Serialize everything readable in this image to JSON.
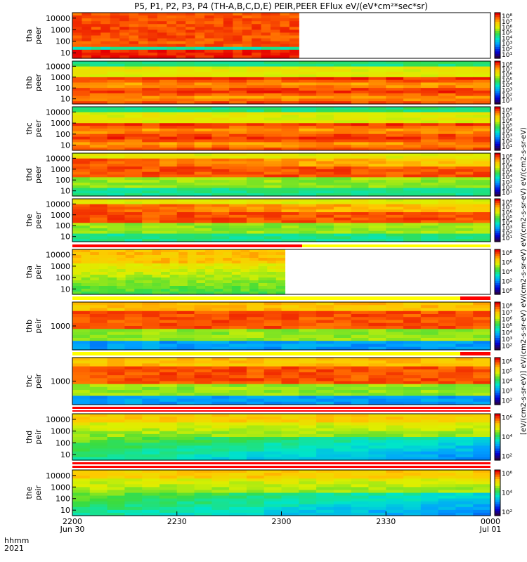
{
  "chart_data": {
    "type": "heatmap",
    "title": "P5, P1, P2, P3, P4 (TH-A,B,C,D,E) PEIR,PEER EFlux eV/(eV*cm²*sec*sr)",
    "colorbar_label": "[eV/(cm2-s-sr-eV)] eV/(cm2-s-sr-eV) eV/(cm2-s-sr-eV) eV/(cm2-s-sr-eV) eV/(cm2-s-sr-eV)",
    "x_axis": {
      "time_label": "hhmm",
      "year_label": "2021",
      "ticks": [
        {
          "hhmm": "2200",
          "date": "Jun 30",
          "minutes": 0
        },
        {
          "hhmm": "2230",
          "date": "",
          "minutes": 30
        },
        {
          "hhmm": "2300",
          "date": "",
          "minutes": 60
        },
        {
          "hhmm": "2330",
          "date": "",
          "minutes": 90
        },
        {
          "hhmm": "0000",
          "date": "Jul 01",
          "minutes": 120
        }
      ],
      "range_minutes": [
        0,
        120
      ]
    },
    "panels": [
      {
        "name": "tha-peer",
        "ylabel": [
          "tha",
          "peer"
        ],
        "y_ticks": [
          "10000",
          "1000",
          "100",
          "10"
        ],
        "cb_ticks": [
          "10⁸",
          "10⁷",
          "10⁶",
          "10⁵",
          "10⁴",
          "10³",
          "10²",
          "10¹"
        ],
        "data_end_minute": 65,
        "profile": "electron_a"
      },
      {
        "name": "thb-peer",
        "ylabel": [
          "thb",
          "peer"
        ],
        "y_ticks": [
          "10000",
          "1000",
          "100",
          "10"
        ],
        "cb_ticks": [
          "10⁸",
          "10⁷",
          "10⁶",
          "10⁵",
          "10⁴",
          "10³",
          "10²",
          "10¹"
        ],
        "data_end_minute": 120,
        "profile": "electron_bc"
      },
      {
        "name": "thc-peer",
        "ylabel": [
          "thc",
          "peer"
        ],
        "y_ticks": [
          "10000",
          "1000",
          "100",
          "10"
        ],
        "cb_ticks": [
          "10⁸",
          "10⁷",
          "10⁶",
          "10⁵",
          "10⁴",
          "10³",
          "10²",
          "10¹"
        ],
        "data_end_minute": 120,
        "profile": "electron_bc"
      },
      {
        "name": "thd-peer",
        "ylabel": [
          "thd",
          "peer"
        ],
        "y_ticks": [
          "10000",
          "1000",
          "100",
          "10"
        ],
        "cb_ticks": [
          "10⁸",
          "10⁷",
          "10⁶",
          "10⁵",
          "10⁴",
          "10³",
          "10²",
          "10¹"
        ],
        "data_end_minute": 120,
        "profile": "electron_de"
      },
      {
        "name": "the-peer",
        "ylabel": [
          "the",
          "peer"
        ],
        "y_ticks": [
          "10000",
          "1000",
          "100",
          "10"
        ],
        "cb_ticks": [
          "10⁸",
          "10⁷",
          "10⁶",
          "10⁵",
          "10⁴",
          "10³",
          "10²",
          "10¹"
        ],
        "data_end_minute": 120,
        "profile": "electron_de"
      },
      {
        "name": "tha-peir",
        "ylabel": [
          "tha",
          "peir"
        ],
        "y_ticks": [
          "10000",
          "1000",
          "100",
          "10"
        ],
        "cb_ticks": [
          "10⁸",
          "10⁶",
          "10⁴",
          "10²",
          "10⁰"
        ],
        "data_end_minute": 61,
        "profile": "ion_a"
      },
      {
        "name": "thb-peir",
        "ylabel": [
          "thb",
          "peir"
        ],
        "y_ticks": [
          "1000"
        ],
        "cb_ticks": [
          "10⁸",
          "10⁷",
          "10⁶",
          "10⁵",
          "10⁴",
          "10³",
          "10²"
        ],
        "data_end_minute": 120,
        "profile": "ion_bc"
      },
      {
        "name": "thc-peir",
        "ylabel": [
          "thc",
          "peir"
        ],
        "y_ticks": [
          "1000"
        ],
        "cb_ticks": [
          "10⁶",
          "10⁵",
          "10⁴",
          "10³",
          "10²"
        ],
        "data_end_minute": 120,
        "profile": "ion_bc"
      },
      {
        "name": "thd-peir",
        "ylabel": [
          "thd",
          "peir"
        ],
        "y_ticks": [
          "10000",
          "1000",
          "100",
          "10"
        ],
        "cb_ticks": [
          "10⁶",
          "10⁴",
          "10²"
        ],
        "data_end_minute": 120,
        "profile": "ion_de"
      },
      {
        "name": "the-peir",
        "ylabel": [
          "the",
          "peir"
        ],
        "y_ticks": [
          "10000",
          "1000",
          "100",
          "10"
        ],
        "cb_ticks": [
          "10⁶",
          "10⁴",
          "10²"
        ],
        "data_end_minute": 120,
        "profile": "ion_de"
      }
    ]
  }
}
